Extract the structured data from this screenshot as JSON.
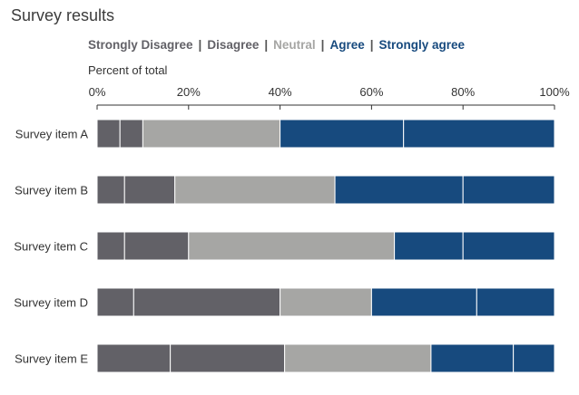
{
  "colors": {
    "strongly_disagree": "#626167",
    "disagree": "#626167",
    "neutral": "#a6a6a4",
    "agree": "#174a7e",
    "strongly_agree": "#174a7e",
    "legend_dark": "#626167",
    "legend_neutral": "#a6a6a4",
    "legend_blue": "#174a7e"
  },
  "chart_data": {
    "type": "bar",
    "orientation": "horizontal-stacked-100",
    "title": "Survey results",
    "xlabel": "Percent of total",
    "ylabel": "",
    "xlim": [
      0,
      100
    ],
    "ticks": [
      "0%",
      "20%",
      "40%",
      "60%",
      "80%",
      "100%"
    ],
    "tick_values": [
      0,
      20,
      40,
      60,
      80,
      100
    ],
    "grid": false,
    "legend_position": "top",
    "separator": "|",
    "categories": [
      "Survey item A",
      "Survey item B",
      "Survey item C",
      "Survey item D",
      "Survey item E"
    ],
    "series": [
      {
        "name": "Strongly Disagree",
        "values": [
          5,
          6,
          6,
          8,
          16
        ]
      },
      {
        "name": "Disagree",
        "values": [
          5,
          11,
          14,
          32,
          25
        ]
      },
      {
        "name": "Neutral",
        "values": [
          30,
          35,
          45,
          20,
          32
        ]
      },
      {
        "name": "Agree",
        "values": [
          27,
          28,
          15,
          23,
          18
        ]
      },
      {
        "name": "Strongly agree",
        "values": [
          33,
          20,
          20,
          17,
          9
        ]
      }
    ]
  }
}
